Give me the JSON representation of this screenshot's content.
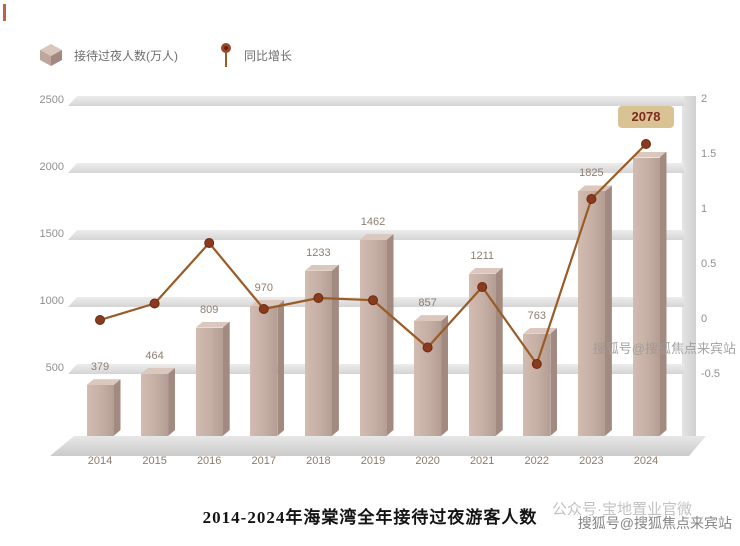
{
  "legend": {
    "items": [
      {
        "icon": "cube-icon",
        "label": "接待过夜人数(万人)"
      },
      {
        "icon": "pin-icon",
        "label": "同比增长"
      }
    ]
  },
  "title": "2014-2024年海棠湾全年接待过夜游客人数",
  "watermarks": {
    "mid_right": "搜狐号@搜狐焦点来宾站",
    "overlay": "公众号·宝地置业官微",
    "bottom_right": "搜狐号@搜狐焦点来宾站"
  },
  "chart_data": {
    "type": "bar",
    "title": "2014-2024年海棠湾全年接待过夜游客人数",
    "categories": [
      "2014",
      "2015",
      "2016",
      "2017",
      "2018",
      "2019",
      "2020",
      "2021",
      "2022",
      "2023",
      "2024"
    ],
    "series": [
      {
        "name": "接待过夜人数(万人)",
        "type": "bar",
        "axis": "left",
        "values": [
          379,
          464,
          809,
          970,
          1233,
          1462,
          857,
          1211,
          763,
          1825,
          2078
        ]
      },
      {
        "name": "同比增长",
        "type": "line",
        "axis": "right",
        "values": [
          0,
          0.15,
          0.7,
          0.1,
          0.2,
          0.18,
          -0.25,
          0.3,
          -0.4,
          1.1,
          1.6
        ]
      }
    ],
    "left_axis": {
      "ticks": [
        "2500",
        "2000",
        "1500",
        "1000",
        "500"
      ],
      "min": 0,
      "max": 2500
    },
    "right_axis": {
      "ticks": [
        "2",
        "1.5",
        "1",
        "0.5",
        "0",
        "-0.5"
      ],
      "min": -0.5,
      "max": 2
    },
    "highlight": {
      "category": "2024",
      "value": "2078"
    },
    "grid": "horizontal-bands",
    "legend_position": "top-left"
  },
  "colors": {
    "bar_front": "#c5aea4",
    "bar_side": "#a28a80",
    "bar_top": "#dac7be",
    "line": "#9a5c26",
    "dot": "#8a3b1e",
    "badge_bg": "#d9c394",
    "badge_text": "#7c2b1e",
    "grid_band": "#dcdcdc",
    "axis_text": "#8f8f8f",
    "x_label": "#8c7b6d"
  }
}
